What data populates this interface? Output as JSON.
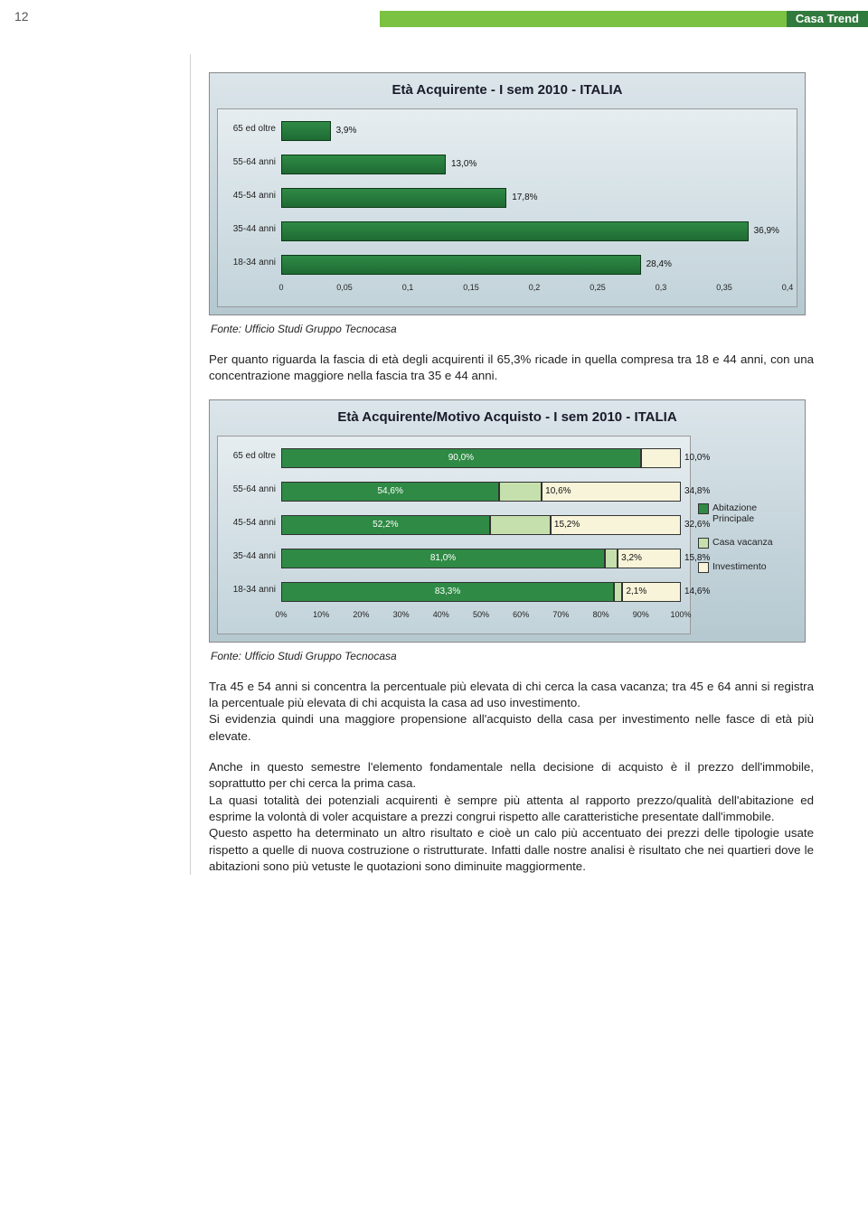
{
  "page_number": "12",
  "header_title": "Casa Trend",
  "chart1": {
    "type": "bar",
    "title": "Età Acquirente - I sem 2010 - ITALIA",
    "background_gradient": [
      "#dbe5ea",
      "#b5c8d0"
    ],
    "plot_gradient": [
      "#e6edf0",
      "#c2d3da"
    ],
    "bar_color": "#2f8a45",
    "categories": [
      "65 ed oltre",
      "55-64 anni",
      "45-54 anni",
      "35-44 anni",
      "18-34 anni"
    ],
    "values": [
      3.9,
      13.0,
      17.8,
      36.9,
      28.4
    ],
    "value_labels": [
      "3,9%",
      "13,0%",
      "17,8%",
      "36,9%",
      "28,4%"
    ],
    "xlim": [
      0,
      0.4
    ],
    "xticks": [
      "0",
      "0,05",
      "0,1",
      "0,15",
      "0,2",
      "0,25",
      "0,3",
      "0,35",
      "0,4"
    ],
    "label_fontsize": 10
  },
  "caption1": "Fonte: Ufficio Studi Gruppo Tecnocasa",
  "para1": "Per quanto riguarda la fascia di età degli acquirenti il 65,3% ricade in quella compresa tra 18 e 44 anni, con una concentrazione maggiore nella fascia tra 35 e 44 anni.",
  "chart2": {
    "type": "stacked-bar",
    "title": "Età Acquirente/Motivo Acquisto - I sem 2010 - ITALIA",
    "categories": [
      "65 ed oltre",
      "55-64 anni",
      "45-54 anni",
      "35-44 anni",
      "18-34 anni"
    ],
    "series": [
      "Abitazione Principale",
      "Casa vacanza",
      "Investimento"
    ],
    "series_colors": [
      "#2f8a45",
      "#c6e0ad",
      "#f7f4d9"
    ],
    "data": [
      [
        90.0,
        0.0,
        10.0
      ],
      [
        54.6,
        10.6,
        34.8
      ],
      [
        52.2,
        15.2,
        32.6
      ],
      [
        81.0,
        3.2,
        15.8
      ],
      [
        83.3,
        2.1,
        14.6
      ]
    ],
    "seg_labels": [
      [
        "90,0%",
        "",
        "10,0%"
      ],
      [
        "54,6%",
        "10,6%",
        "34,8%"
      ],
      [
        "52,2%",
        "15,2%",
        "32,6%"
      ],
      [
        "81,0%",
        "3,2%",
        "15,8%"
      ],
      [
        "83,3%",
        "2,1%",
        "14,6%"
      ]
    ],
    "xticks": [
      "0%",
      "10%",
      "20%",
      "30%",
      "40%",
      "50%",
      "60%",
      "70%",
      "80%",
      "90%",
      "100%"
    ]
  },
  "caption2": "Fonte: Ufficio Studi Gruppo Tecnocasa",
  "para2": "Tra 45 e 54 anni si concentra la percentuale più elevata di chi cerca la casa vacanza; tra 45 e 64 anni si registra la percentuale più elevata di chi acquista la casa ad uso investimento.",
  "para3": "Si evidenzia quindi una maggiore propensione all'acquisto della casa per investimento nelle fasce di età più elevate.",
  "para4": "Anche in questo semestre l'elemento fondamentale nella decisione di acquisto è il prezzo dell'immobile, soprattutto per chi cerca la prima casa.",
  "para5": "La quasi totalità dei potenziali acquirenti è sempre più attenta al rapporto prezzo/qualità dell'abitazione ed esprime la volontà di voler acquistare a prezzi congrui rispetto alle caratteristiche presentate dall'immobile.",
  "para6": "Questo aspetto ha determinato un altro risultato e cioè un calo più accentuato dei prezzi delle tipologie usate rispetto a quelle di nuova costruzione o ristrutturate. Infatti dalle nostre analisi è risultato che nei quartieri dove le abitazioni sono più vetuste le quotazioni sono diminuite maggiormente."
}
